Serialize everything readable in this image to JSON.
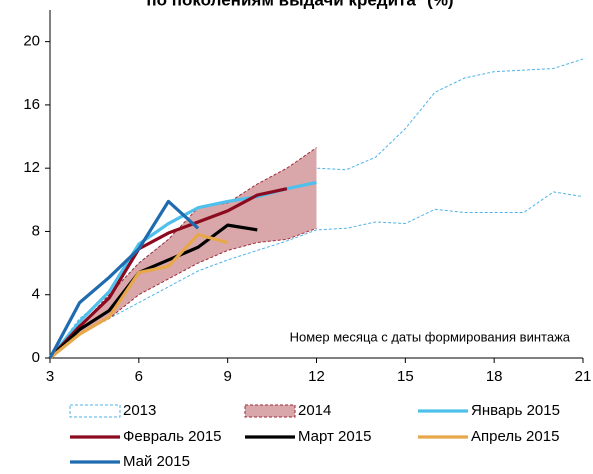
{
  "chart_data": {
    "type": "line",
    "title": "по поколениям выдачи кредита* (%)",
    "annotation": "Номер месяца с даты формирования винтажа",
    "x": [
      3,
      4,
      5,
      6,
      7,
      8,
      9,
      10,
      11,
      12,
      13,
      14,
      15,
      16,
      17,
      18,
      19,
      20,
      21
    ],
    "xlim": [
      3,
      21
    ],
    "xticks": [
      3,
      6,
      9,
      12,
      15,
      18,
      21
    ],
    "ylim": [
      0,
      22
    ],
    "yticks": [
      0,
      4,
      8,
      12,
      16,
      20
    ],
    "series": [
      {
        "name": "2013",
        "kind": "band",
        "color": "#4fb3e8",
        "dashed": true,
        "upper": [
          0,
          2.5,
          4,
          6,
          7.5,
          9,
          9.8,
          10.5,
          11.2,
          12,
          11.9,
          12.7,
          14.5,
          16.8,
          17.7,
          18.1,
          18.2,
          18.3,
          18.9
        ],
        "lower": [
          0,
          1.5,
          2.5,
          3.5,
          4.5,
          5.5,
          6.2,
          6.8,
          7.4,
          8.1,
          8.2,
          8.6,
          8.5,
          9.4,
          9.2,
          9.2,
          9.2,
          10.5,
          10.2
        ]
      },
      {
        "name": "2014",
        "kind": "band",
        "color": "#9e2a3a",
        "fill": "#d9a7a9",
        "dashed": true,
        "upper": [
          0,
          2,
          4,
          6,
          7.5,
          9.5,
          9.8,
          11,
          12,
          13.3,
          null,
          null,
          null,
          null,
          null,
          null,
          null,
          null,
          null
        ],
        "lower": [
          0,
          1.5,
          2.5,
          4,
          5,
          6,
          6.8,
          7.3,
          7.5,
          8.2,
          null,
          null,
          null,
          null,
          null,
          null,
          null,
          null,
          null
        ]
      },
      {
        "name": "Январь 2015",
        "color": "#4fc0ec",
        "values": [
          0,
          2.3,
          4.2,
          7.2,
          8.5,
          9.5,
          9.9,
          10.2,
          10.7,
          11.1,
          null,
          null,
          null,
          null,
          null,
          null,
          null,
          null,
          null
        ]
      },
      {
        "name": "Февраль 2015",
        "color": "#8b0a1e",
        "values": [
          0,
          2,
          3.8,
          6.9,
          7.9,
          8.6,
          9.3,
          10.3,
          10.7,
          null,
          null,
          null,
          null,
          null,
          null,
          null,
          null,
          null,
          null
        ]
      },
      {
        "name": "Март 2015",
        "color": "#000000",
        "values": [
          0,
          1.8,
          3,
          5.4,
          6.2,
          7,
          8.4,
          8.1,
          null,
          null,
          null,
          null,
          null,
          null,
          null,
          null,
          null,
          null,
          null
        ]
      },
      {
        "name": "Апрель 2015",
        "color": "#e8a84a",
        "values": [
          0,
          1.5,
          2.6,
          5.4,
          5.8,
          7.8,
          7.3,
          null,
          null,
          null,
          null,
          null,
          null,
          null,
          null,
          null,
          null,
          null,
          null
        ]
      },
      {
        "name": "Май 2015",
        "color": "#1f6bb0",
        "values": [
          0,
          3.5,
          5.1,
          6.9,
          9.9,
          8.2,
          null,
          null,
          null,
          null,
          null,
          null,
          null,
          null,
          null,
          null,
          null,
          null,
          null
        ]
      }
    ]
  }
}
